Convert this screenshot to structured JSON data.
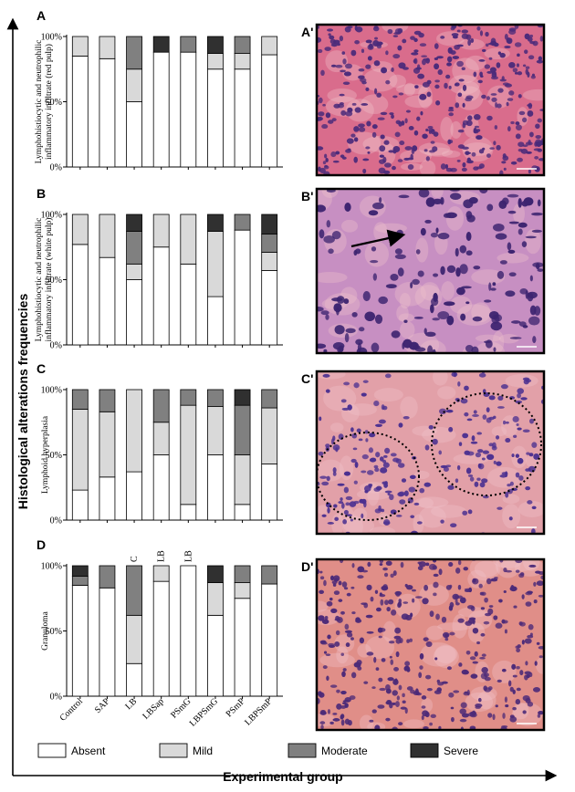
{
  "figure": {
    "y_axis_title": "Histological alterations frequencies",
    "x_axis_title": "Experimental group"
  },
  "legend": [
    {
      "label": "Absent",
      "color": "#ffffff"
    },
    {
      "label": "Mild",
      "color": "#d9d9d9"
    },
    {
      "label": "Moderate",
      "color": "#808080"
    },
    {
      "label": "Severe",
      "color": "#303030"
    }
  ],
  "chart_data": [
    {
      "type": "bar",
      "stacked": true,
      "panel": "A",
      "ylabel": "Lymphohistiocytic and neutrophilic inflammatory infiltrate (red pulp)",
      "ylabel_lines": [
        "Lymphohistiocytic and neutrophilic",
        "inflammatory infiltrate (red pulp)"
      ],
      "yticks": [
        "0%",
        "50%",
        "100%"
      ],
      "ylim": [
        0,
        100
      ],
      "categories": [
        "Control",
        "SAP",
        "LB",
        "LBSap",
        "PSmG",
        "LBPSmG",
        "PSmP",
        "LBPSmP"
      ],
      "series": [
        {
          "name": "Absent",
          "values": [
            85,
            83,
            50,
            88,
            88,
            75,
            75,
            86
          ]
        },
        {
          "name": "Mild",
          "values": [
            15,
            17,
            25,
            0,
            0,
            12,
            12,
            14
          ]
        },
        {
          "name": "Moderate",
          "values": [
            0,
            0,
            25,
            0,
            12,
            0,
            13,
            0
          ]
        },
        {
          "name": "Severe",
          "values": [
            0,
            0,
            0,
            12,
            0,
            13,
            0,
            0
          ]
        }
      ],
      "annotations": []
    },
    {
      "type": "bar",
      "stacked": true,
      "panel": "B",
      "ylabel": "Lymphohistiocytic and neutrophilic inflammatory infiltrate (white pulp)",
      "ylabel_lines": [
        "Lymphohistiocytic and neutrophilic",
        "inflammatory infiltrate (white pulp)"
      ],
      "yticks": [
        "0%",
        "50%",
        "100%"
      ],
      "ylim": [
        0,
        100
      ],
      "categories": [
        "Control",
        "SAP",
        "LB",
        "LBSap",
        "PSmG",
        "LBPSmG",
        "PSmP",
        "LBPSmP"
      ],
      "series": [
        {
          "name": "Absent",
          "values": [
            77,
            67,
            50,
            75,
            62,
            37,
            88,
            57
          ]
        },
        {
          "name": "Mild",
          "values": [
            23,
            33,
            12,
            25,
            38,
            50,
            0,
            14
          ]
        },
        {
          "name": "Moderate",
          "values": [
            0,
            0,
            25,
            0,
            0,
            0,
            12,
            14
          ]
        },
        {
          "name": "Severe",
          "values": [
            0,
            0,
            13,
            0,
            0,
            13,
            0,
            15
          ]
        }
      ],
      "annotations": []
    },
    {
      "type": "bar",
      "stacked": true,
      "panel": "C",
      "ylabel": "Lymphoid hyperplasia",
      "ylabel_lines": [
        "Lymphoid hyperplasia"
      ],
      "yticks": [
        "0%",
        "50%",
        "100%"
      ],
      "ylim": [
        0,
        100
      ],
      "categories": [
        "Control",
        "SAP",
        "LB",
        "LBSap",
        "PSmG",
        "LBPSmG",
        "PSmP",
        "LBPSmP"
      ],
      "series": [
        {
          "name": "Absent",
          "values": [
            23,
            33,
            37,
            50,
            12,
            50,
            12,
            43
          ]
        },
        {
          "name": "Mild",
          "values": [
            62,
            50,
            63,
            25,
            76,
            37,
            38,
            43
          ]
        },
        {
          "name": "Moderate",
          "values": [
            15,
            17,
            0,
            25,
            12,
            13,
            38,
            14
          ]
        },
        {
          "name": "Severe",
          "values": [
            0,
            0,
            0,
            0,
            0,
            0,
            12,
            0
          ]
        }
      ],
      "annotations": []
    },
    {
      "type": "bar",
      "stacked": true,
      "panel": "D",
      "ylabel": "Granuloma",
      "ylabel_lines": [
        "Granuloma"
      ],
      "yticks": [
        "0%",
        "50%",
        "100%"
      ],
      "ylim": [
        0,
        100
      ],
      "categories": [
        "Control",
        "SAP",
        "LB",
        "LBSap",
        "PSmG",
        "LBPSmG",
        "PSmP",
        "LBPSmP"
      ],
      "series": [
        {
          "name": "Absent",
          "values": [
            85,
            83,
            25,
            88,
            100,
            62,
            75,
            86
          ]
        },
        {
          "name": "Mild",
          "values": [
            0,
            0,
            37,
            12,
            0,
            25,
            12,
            0
          ]
        },
        {
          "name": "Moderate",
          "values": [
            7,
            17,
            38,
            0,
            0,
            0,
            13,
            14
          ]
        },
        {
          "name": "Severe",
          "values": [
            8,
            0,
            0,
            0,
            0,
            13,
            0,
            0
          ]
        }
      ],
      "annotations": [
        {
          "category": "LB",
          "text": "C"
        },
        {
          "category": "LBSap",
          "text": "LB"
        },
        {
          "category": "PSmG",
          "text": "LB"
        }
      ]
    }
  ],
  "images": [
    {
      "label": "A'",
      "stain": "H&E red pulp",
      "base": "#d96c8c",
      "cell": "#4a2a7a"
    },
    {
      "label": "B'",
      "stain": "H&E white pulp",
      "base": "#c78fc2",
      "cell": "#3d2470"
    },
    {
      "label": "C'",
      "stain": "H&E lymphoid hyperplasia",
      "base": "#e2a0a8",
      "cell": "#4b3090"
    },
    {
      "label": "D'",
      "stain": "H&E granuloma",
      "base": "#e08e88",
      "cell": "#4c2a78"
    }
  ]
}
